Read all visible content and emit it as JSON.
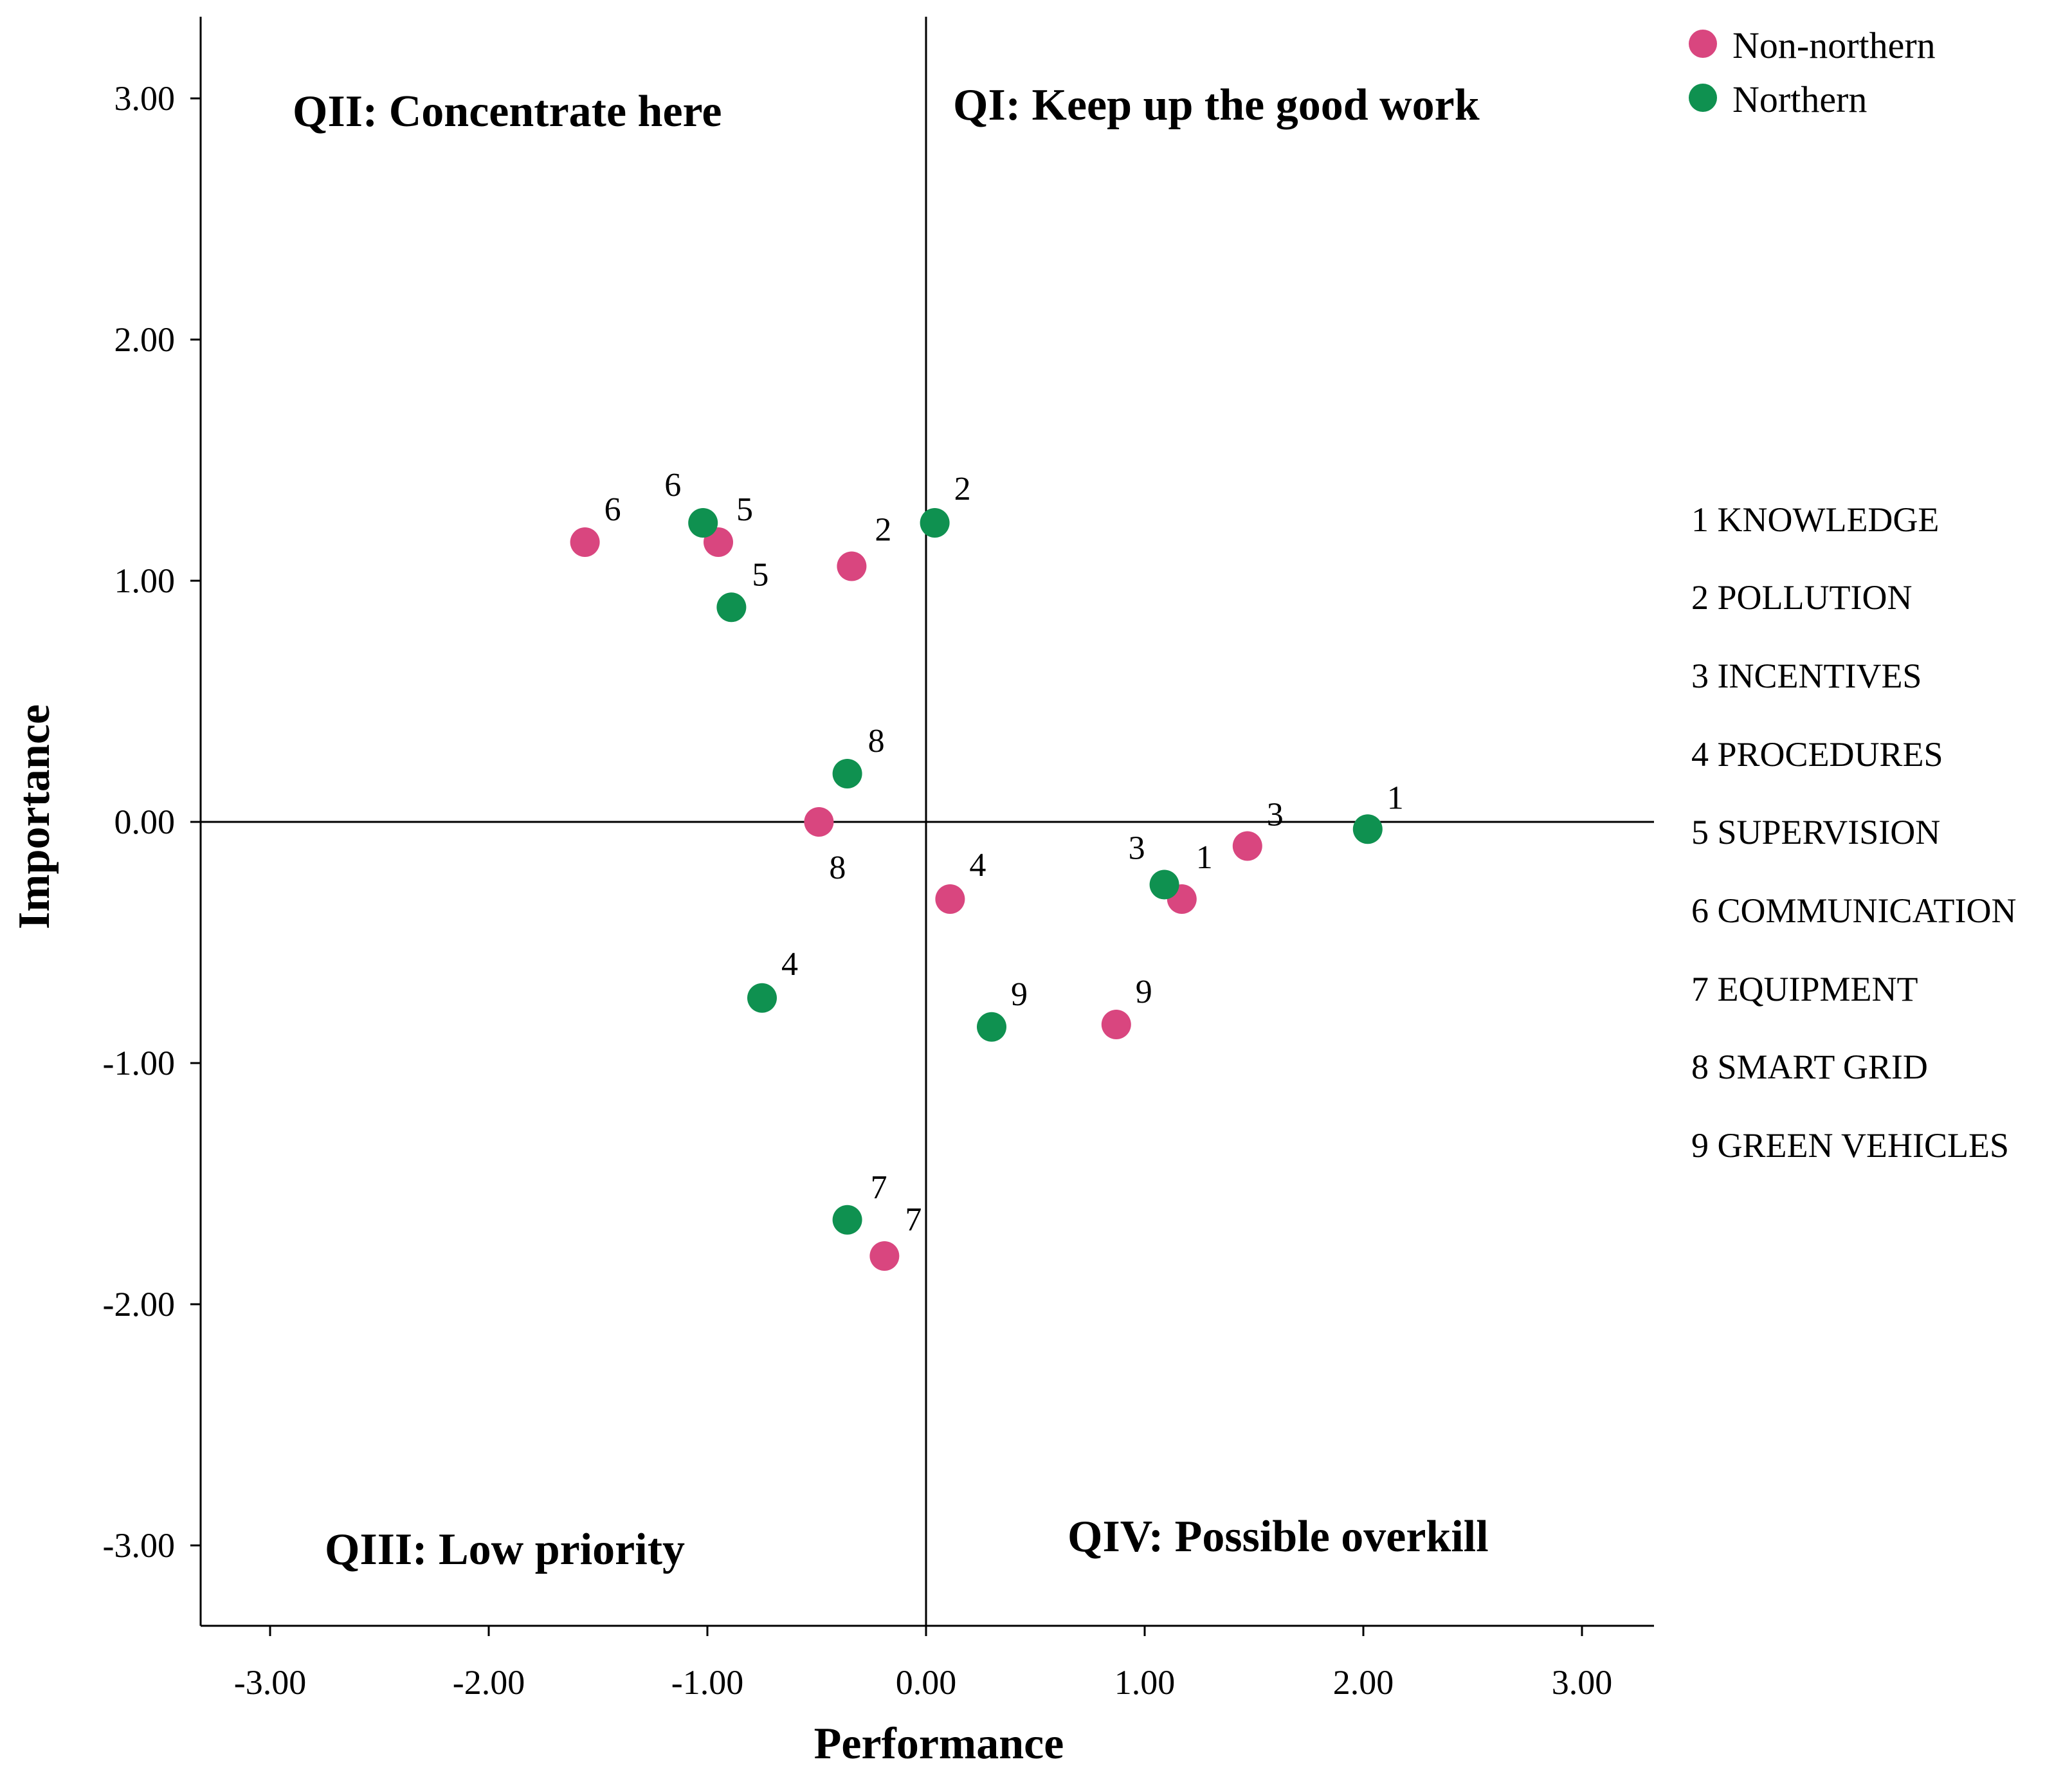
{
  "chart_data": {
    "type": "scatter",
    "xlabel": "Performance",
    "ylabel": "Importance",
    "xlim": [
      -3.33,
      3.33
    ],
    "ylim": [
      -3.33,
      3.33
    ],
    "xticks": [
      -3,
      -2,
      -1,
      0,
      1,
      2,
      3
    ],
    "yticks": [
      -3,
      -2,
      -1,
      0,
      1,
      2,
      3
    ],
    "tick_labels_x": [
      "-3.00",
      "-2.00",
      "-1.00",
      "0.00",
      "1.00",
      "2.00",
      "3.00"
    ],
    "tick_labels_y": [
      "-3.00",
      "-2.00",
      "-1.00",
      "0.00",
      "1.00",
      "2.00",
      "3.00"
    ],
    "reference_lines": {
      "x": 0,
      "y": 0
    },
    "quadrants": {
      "q1": "QI: Keep up the good work",
      "q2": "QII: Concentrate here",
      "q3": "QIII: Low priority",
      "q4": "QIV: Possible overkill"
    },
    "series": [
      {
        "name": "Non-northern",
        "legend_label": "Non-northern",
        "color": "#d9467f",
        "points": [
          {
            "id": "1",
            "x": 1.17,
            "y": -0.32
          },
          {
            "id": "2",
            "x": -0.34,
            "y": 1.06
          },
          {
            "id": "3",
            "x": 1.47,
            "y": -0.1
          },
          {
            "id": "4",
            "x": 0.11,
            "y": -0.32
          },
          {
            "id": "5",
            "x": -0.95,
            "y": 1.16
          },
          {
            "id": "6",
            "x": -1.56,
            "y": 1.16
          },
          {
            "id": "7",
            "x": -0.19,
            "y": -1.8
          },
          {
            "id": "8",
            "x": -0.49,
            "y": 0.0
          },
          {
            "id": "9",
            "x": 0.87,
            "y": -0.84
          }
        ]
      },
      {
        "name": "Northern",
        "legend_label": "Northern",
        "color": "#0f9150",
        "points": [
          {
            "id": "1",
            "x": 2.02,
            "y": -0.03
          },
          {
            "id": "2",
            "x": 0.04,
            "y": 1.24
          },
          {
            "id": "3",
            "x": 1.09,
            "y": -0.26
          },
          {
            "id": "4",
            "x": -0.75,
            "y": -0.73
          },
          {
            "id": "5",
            "x": -0.89,
            "y": 0.89
          },
          {
            "id": "6",
            "x": -1.02,
            "y": 1.24
          },
          {
            "id": "7",
            "x": -0.36,
            "y": -1.65
          },
          {
            "id": "8",
            "x": -0.36,
            "y": 0.2
          },
          {
            "id": "9",
            "x": 0.3,
            "y": -0.85
          }
        ]
      }
    ],
    "point_key": [
      "1 KNOWLEDGE",
      "2 POLLUTION",
      "3 INCENTIVES",
      "4 PROCEDURES",
      "5 SUPERVISION",
      "6 COMMUNICATION",
      "7 EQUIPMENT",
      "8 SMART GRID",
      "9 GREEN VEHICLES"
    ]
  }
}
